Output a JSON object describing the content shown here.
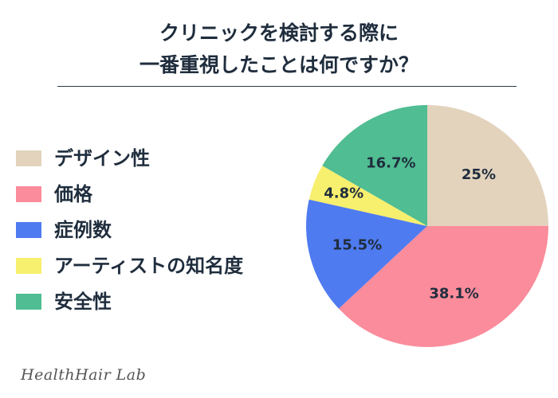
{
  "chart_data": {
    "type": "pie",
    "title_lines": [
      "クリニックを検討する際に",
      "一番重視したことは何ですか？"
    ],
    "legend_placement": "left",
    "categories": [
      "デザイン性",
      "価格",
      "症例数",
      "アーティストの知名度",
      "安全性"
    ],
    "values": [
      25,
      38.1,
      15.5,
      4.8,
      16.7
    ],
    "data_labels": [
      "25%",
      "38.1%",
      "15.5%",
      "4.8%",
      "16.7%"
    ],
    "colors": [
      "#e3d3bd",
      "#fb8c9b",
      "#4f7bf0",
      "#f7ef6e",
      "#50bd92"
    ]
  },
  "watermark": "HealthHair Lab"
}
